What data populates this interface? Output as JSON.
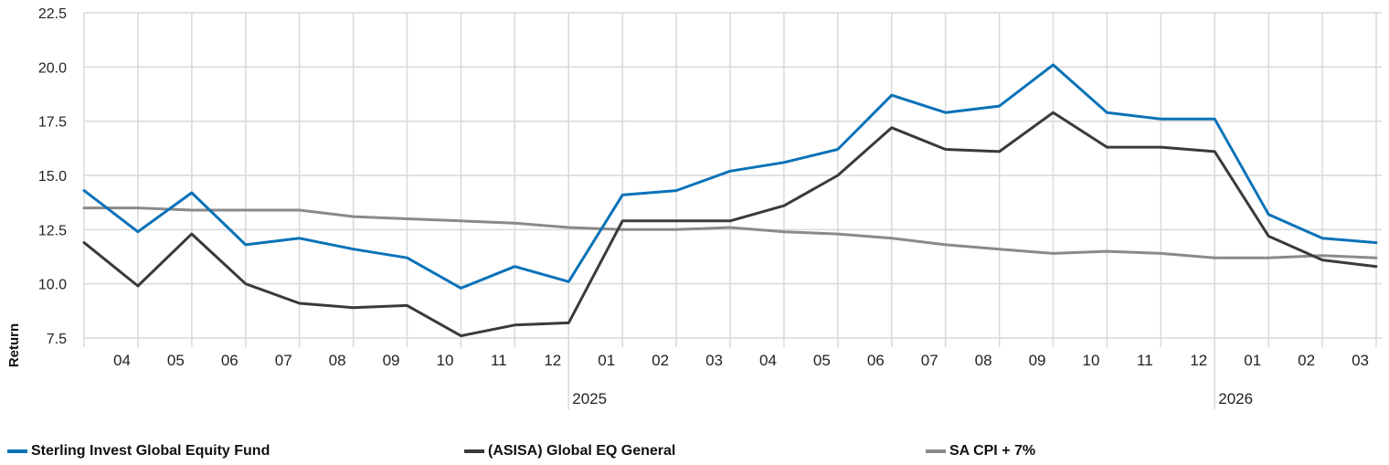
{
  "chart_data": {
    "type": "line",
    "ylabel": "Return",
    "ylim": [
      7.5,
      22.5
    ],
    "yticks": [
      "7.5",
      "10.0",
      "12.5",
      "15.0",
      "17.5",
      "20.0",
      "22.5"
    ],
    "grid": true,
    "legend_position": "bottom",
    "x": [
      "2024-03",
      "2024-04",
      "2024-05",
      "2024-06",
      "2024-07",
      "2024-08",
      "2024-09",
      "2024-10",
      "2024-11",
      "2024-12",
      "2025-01",
      "2025-02",
      "2025-03",
      "2025-04",
      "2025-05",
      "2025-06",
      "2025-07",
      "2025-08",
      "2025-09",
      "2025-10",
      "2025-11",
      "2025-12",
      "2026-01",
      "2026-02",
      "2026-03"
    ],
    "xtick_labels": [
      "04",
      "05",
      "06",
      "07",
      "08",
      "09",
      "10",
      "11",
      "12",
      "01",
      "02",
      "03",
      "04",
      "05",
      "06",
      "07",
      "08",
      "09",
      "10",
      "11",
      "12",
      "01",
      "02",
      "03"
    ],
    "year_labels": [
      {
        "label": "2025",
        "x": "2024-12"
      },
      {
        "label": "2026",
        "x": "2025-12"
      }
    ],
    "series": [
      {
        "name": "Sterling Invest Global Equity Fund",
        "color": "#0a72b8",
        "values": [
          14.3,
          12.4,
          14.2,
          11.8,
          12.1,
          11.6,
          11.2,
          9.8,
          10.8,
          10.1,
          14.1,
          14.3,
          15.2,
          15.6,
          16.2,
          18.7,
          17.9,
          18.2,
          20.1,
          17.9,
          17.6,
          17.6,
          13.2,
          12.1,
          11.9
        ]
      },
      {
        "name": "(ASISA) Global EQ General",
        "color": "#3a3a3a",
        "values": [
          11.9,
          9.9,
          12.3,
          10.0,
          9.1,
          8.9,
          9.0,
          7.6,
          8.1,
          8.2,
          12.9,
          12.9,
          12.9,
          13.6,
          15.0,
          17.2,
          16.2,
          16.1,
          17.9,
          16.3,
          16.3,
          16.1,
          12.2,
          11.1,
          10.8
        ]
      },
      {
        "name": "SA CPI + 7%",
        "color": "#8a8a8a",
        "values": [
          13.5,
          13.5,
          13.4,
          13.4,
          13.4,
          13.1,
          13.0,
          12.9,
          12.8,
          12.6,
          12.5,
          12.5,
          12.6,
          12.4,
          12.3,
          12.1,
          11.8,
          11.6,
          11.4,
          11.5,
          11.4,
          11.2,
          11.2,
          11.3,
          11.2
        ]
      }
    ]
  }
}
